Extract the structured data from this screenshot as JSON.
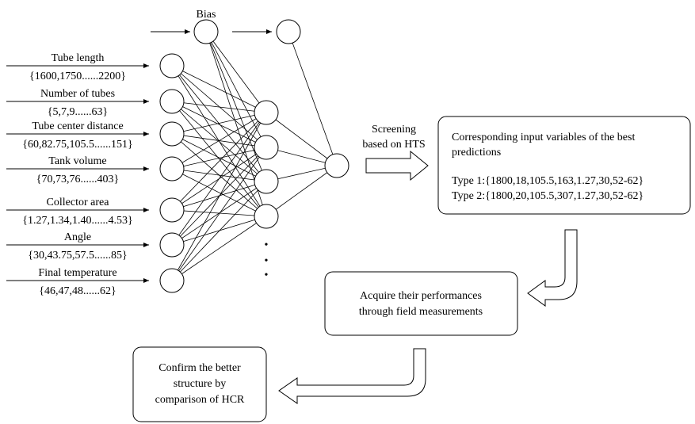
{
  "bias_label": "Bias",
  "inputs": [
    {
      "name": "Tube length",
      "values": "{1600,1750......2200}"
    },
    {
      "name": "Number of tubes",
      "values": "{5,7,9......63}"
    },
    {
      "name": "Tube center distance",
      "values": "{60,82.75,105.5......151}"
    },
    {
      "name": "Tank volume",
      "values": "{70,73,76......403}"
    },
    {
      "name": "Collector area",
      "values": "{1.27,1.34,1.40......4.53}"
    },
    {
      "name": "Angle",
      "values": "{30,43.75,57.5......85}"
    },
    {
      "name": "Final temperature",
      "values": "{46,47,48......62}"
    }
  ],
  "screening_label": [
    "Screening",
    "based on HTS"
  ],
  "best_predictions": {
    "title": [
      "Corresponding input variables of the best",
      "predictions"
    ],
    "type1": "Type 1:{1800,18,105.5,163,1.27,30,52-62}",
    "type2": "Type 2:{1800,20,105.5,307,1.27,30,52-62}"
  },
  "field_box": [
    "Acquire their performances",
    "through field measurements"
  ],
  "confirm_box": [
    "Confirm the better",
    "structure by",
    "comparison of HCR"
  ],
  "ellipsis": "•"
}
